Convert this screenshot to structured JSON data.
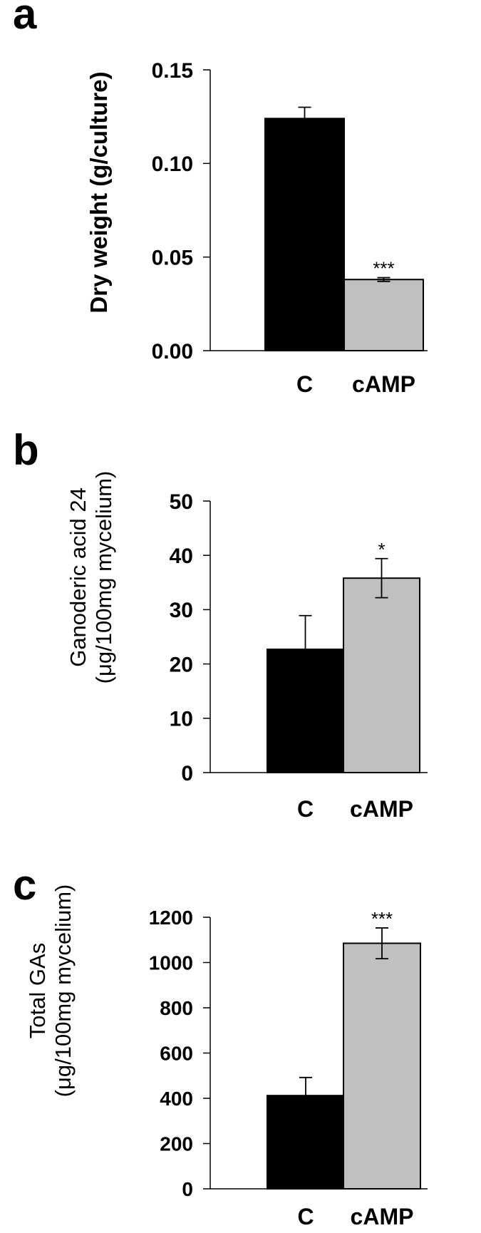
{
  "chart_data": [
    {
      "type": "bar",
      "panel": "a",
      "categories": [
        "C",
        "cAMP"
      ],
      "values": [
        0.124,
        0.038
      ],
      "errors": [
        0.006,
        0.001
      ],
      "significance": [
        "",
        "***"
      ],
      "ylabel": "Dry weight (g/culture)",
      "ylim": [
        0,
        0.15
      ],
      "yticks": [
        "0.00",
        "0.05",
        "0.10",
        "0.15"
      ],
      "ytick_values": [
        0,
        0.05,
        0.1,
        0.15
      ],
      "colors": [
        "#000000",
        "#c0c0c0"
      ]
    },
    {
      "type": "bar",
      "panel": "b",
      "categories": [
        "C",
        "cAMP"
      ],
      "values": [
        22.7,
        35.8
      ],
      "errors": [
        6.2,
        3.6
      ],
      "significance": [
        "",
        "*"
      ],
      "ylabel_lines": [
        "Ganoderic acid 24",
        "(μg/100mg mycelium)"
      ],
      "ylim": [
        0,
        50
      ],
      "yticks": [
        "0",
        "10",
        "20",
        "30",
        "40",
        "50"
      ],
      "ytick_values": [
        0,
        10,
        20,
        30,
        40,
        50
      ],
      "colors": [
        "#000000",
        "#c0c0c0"
      ]
    },
    {
      "type": "bar",
      "panel": "c",
      "categories": [
        "C",
        "cAMP"
      ],
      "values": [
        412,
        1085
      ],
      "errors": [
        80,
        68
      ],
      "significance": [
        "",
        "***"
      ],
      "ylabel_lines": [
        "Total GAs",
        "(μg/100mg mycelium)"
      ],
      "ylim": [
        0,
        1200
      ],
      "yticks": [
        "0",
        "200",
        "400",
        "600",
        "800",
        "1000",
        "1200"
      ],
      "ytick_values": [
        0,
        200,
        400,
        600,
        800,
        1000,
        1200
      ],
      "colors": [
        "#000000",
        "#c0c0c0"
      ]
    }
  ]
}
